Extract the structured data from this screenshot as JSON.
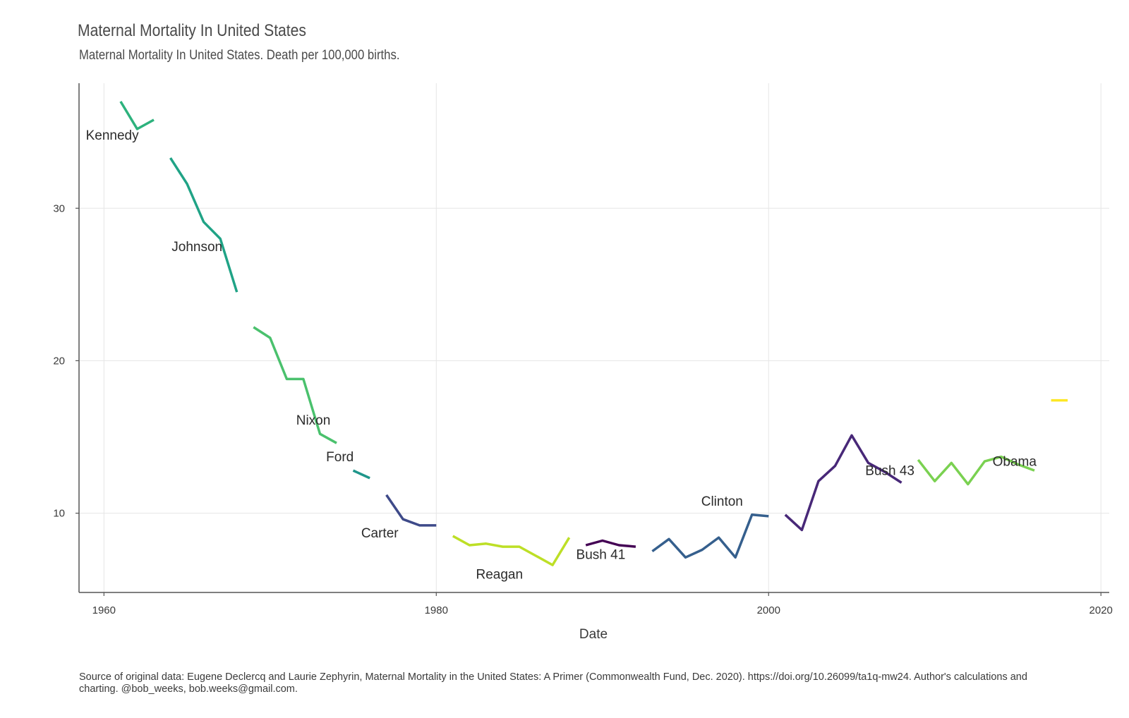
{
  "chart_data": {
    "type": "line",
    "title": "Maternal Mortality In United States",
    "subtitle": "Maternal Mortality In United States. Death per 100,000 births.",
    "xlabel": "Date",
    "ylabel": "",
    "xlim": [
      1958.5,
      2020.5
    ],
    "ylim": [
      4.8,
      38.2
    ],
    "x_ticks": [
      1960,
      1980,
      2000,
      2020
    ],
    "y_ticks": [
      10,
      20,
      30
    ],
    "grid": true,
    "legend": "none",
    "caption": "Source of original data: Eugene Declercq and Laurie Zephyrin, Maternal Mortality in the United States: A Primer (Commonwealth Fund, Dec. 2020). https://doi.org/10.26099/ta1q-mw24. Author's calculations and charting. @bob_weeks, bob.weeks@gmail.com.",
    "series": [
      {
        "name": "Kennedy",
        "color": "#2db27d",
        "label_pos": [
          1960.5,
          34.5
        ],
        "points": [
          [
            1961,
            37.0
          ],
          [
            1962,
            35.2
          ],
          [
            1963,
            35.8
          ]
        ]
      },
      {
        "name": "Johnson",
        "color": "#20a386",
        "label_pos": [
          1965.6,
          27.2
        ],
        "points": [
          [
            1964,
            33.3
          ],
          [
            1965,
            31.6
          ],
          [
            1966,
            29.1
          ],
          [
            1967,
            28.0
          ],
          [
            1968,
            24.5
          ]
        ]
      },
      {
        "name": "Nixon",
        "color": "#4ac16d",
        "label_pos": [
          1972.6,
          15.8
        ],
        "points": [
          [
            1969,
            22.2
          ],
          [
            1970,
            21.5
          ],
          [
            1971,
            18.8
          ],
          [
            1972,
            18.8
          ],
          [
            1973,
            15.2
          ],
          [
            1974,
            14.6
          ]
        ]
      },
      {
        "name": "Ford",
        "color": "#1f968b",
        "label_pos": [
          1974.2,
          13.4
        ],
        "points": [
          [
            1975,
            12.8
          ],
          [
            1976,
            12.3
          ]
        ]
      },
      {
        "name": "Carter",
        "color": "#3e4a89",
        "label_pos": [
          1976.6,
          8.4
        ],
        "points": [
          [
            1977,
            11.2
          ],
          [
            1978,
            9.6
          ],
          [
            1979,
            9.2
          ],
          [
            1980,
            9.2
          ]
        ]
      },
      {
        "name": "Reagan",
        "color": "#bddf26",
        "label_pos": [
          1983.8,
          5.7
        ],
        "points": [
          [
            1981,
            8.5
          ],
          [
            1982,
            7.9
          ],
          [
            1983,
            8.0
          ],
          [
            1984,
            7.8
          ],
          [
            1985,
            7.8
          ],
          [
            1986,
            7.2
          ],
          [
            1987,
            6.6
          ],
          [
            1988,
            8.4
          ]
        ]
      },
      {
        "name": "Bush 41",
        "color": "#440154",
        "label_pos": [
          1989.9,
          7.0
        ],
        "points": [
          [
            1989,
            7.9
          ],
          [
            1990,
            8.2
          ],
          [
            1991,
            7.9
          ],
          [
            1992,
            7.8
          ]
        ]
      },
      {
        "name": "Clinton",
        "color": "#355f8d",
        "label_pos": [
          1997.2,
          10.5
        ],
        "points": [
          [
            1993,
            7.5
          ],
          [
            1994,
            8.3
          ],
          [
            1995,
            7.1
          ],
          [
            1996,
            7.6
          ],
          [
            1997,
            8.4
          ],
          [
            1998,
            7.1
          ],
          [
            1999,
            9.9
          ],
          [
            2000,
            9.8
          ]
        ]
      },
      {
        "name": "Bush 43",
        "color": "#482878",
        "label_pos": [
          2007.3,
          12.5
        ],
        "points": [
          [
            2001,
            9.9
          ],
          [
            2002,
            8.9
          ],
          [
            2003,
            12.1
          ],
          [
            2004,
            13.1
          ],
          [
            2005,
            15.1
          ],
          [
            2006,
            13.3
          ],
          [
            2007,
            12.7
          ],
          [
            2008,
            12.0
          ]
        ]
      },
      {
        "name": "Obama",
        "color": "#7ad151",
        "label_pos": [
          2014.8,
          13.1
        ],
        "points": [
          [
            2009,
            13.5
          ],
          [
            2010,
            12.1
          ],
          [
            2011,
            13.3
          ],
          [
            2012,
            11.9
          ],
          [
            2013,
            13.4
          ],
          [
            2014,
            13.7
          ],
          [
            2015,
            13.2
          ],
          [
            2016,
            12.8
          ]
        ]
      },
      {
        "name": "",
        "color": "#fde725",
        "label_pos": null,
        "points": [
          [
            2017,
            17.4
          ],
          [
            2018,
            17.4
          ]
        ]
      }
    ]
  }
}
